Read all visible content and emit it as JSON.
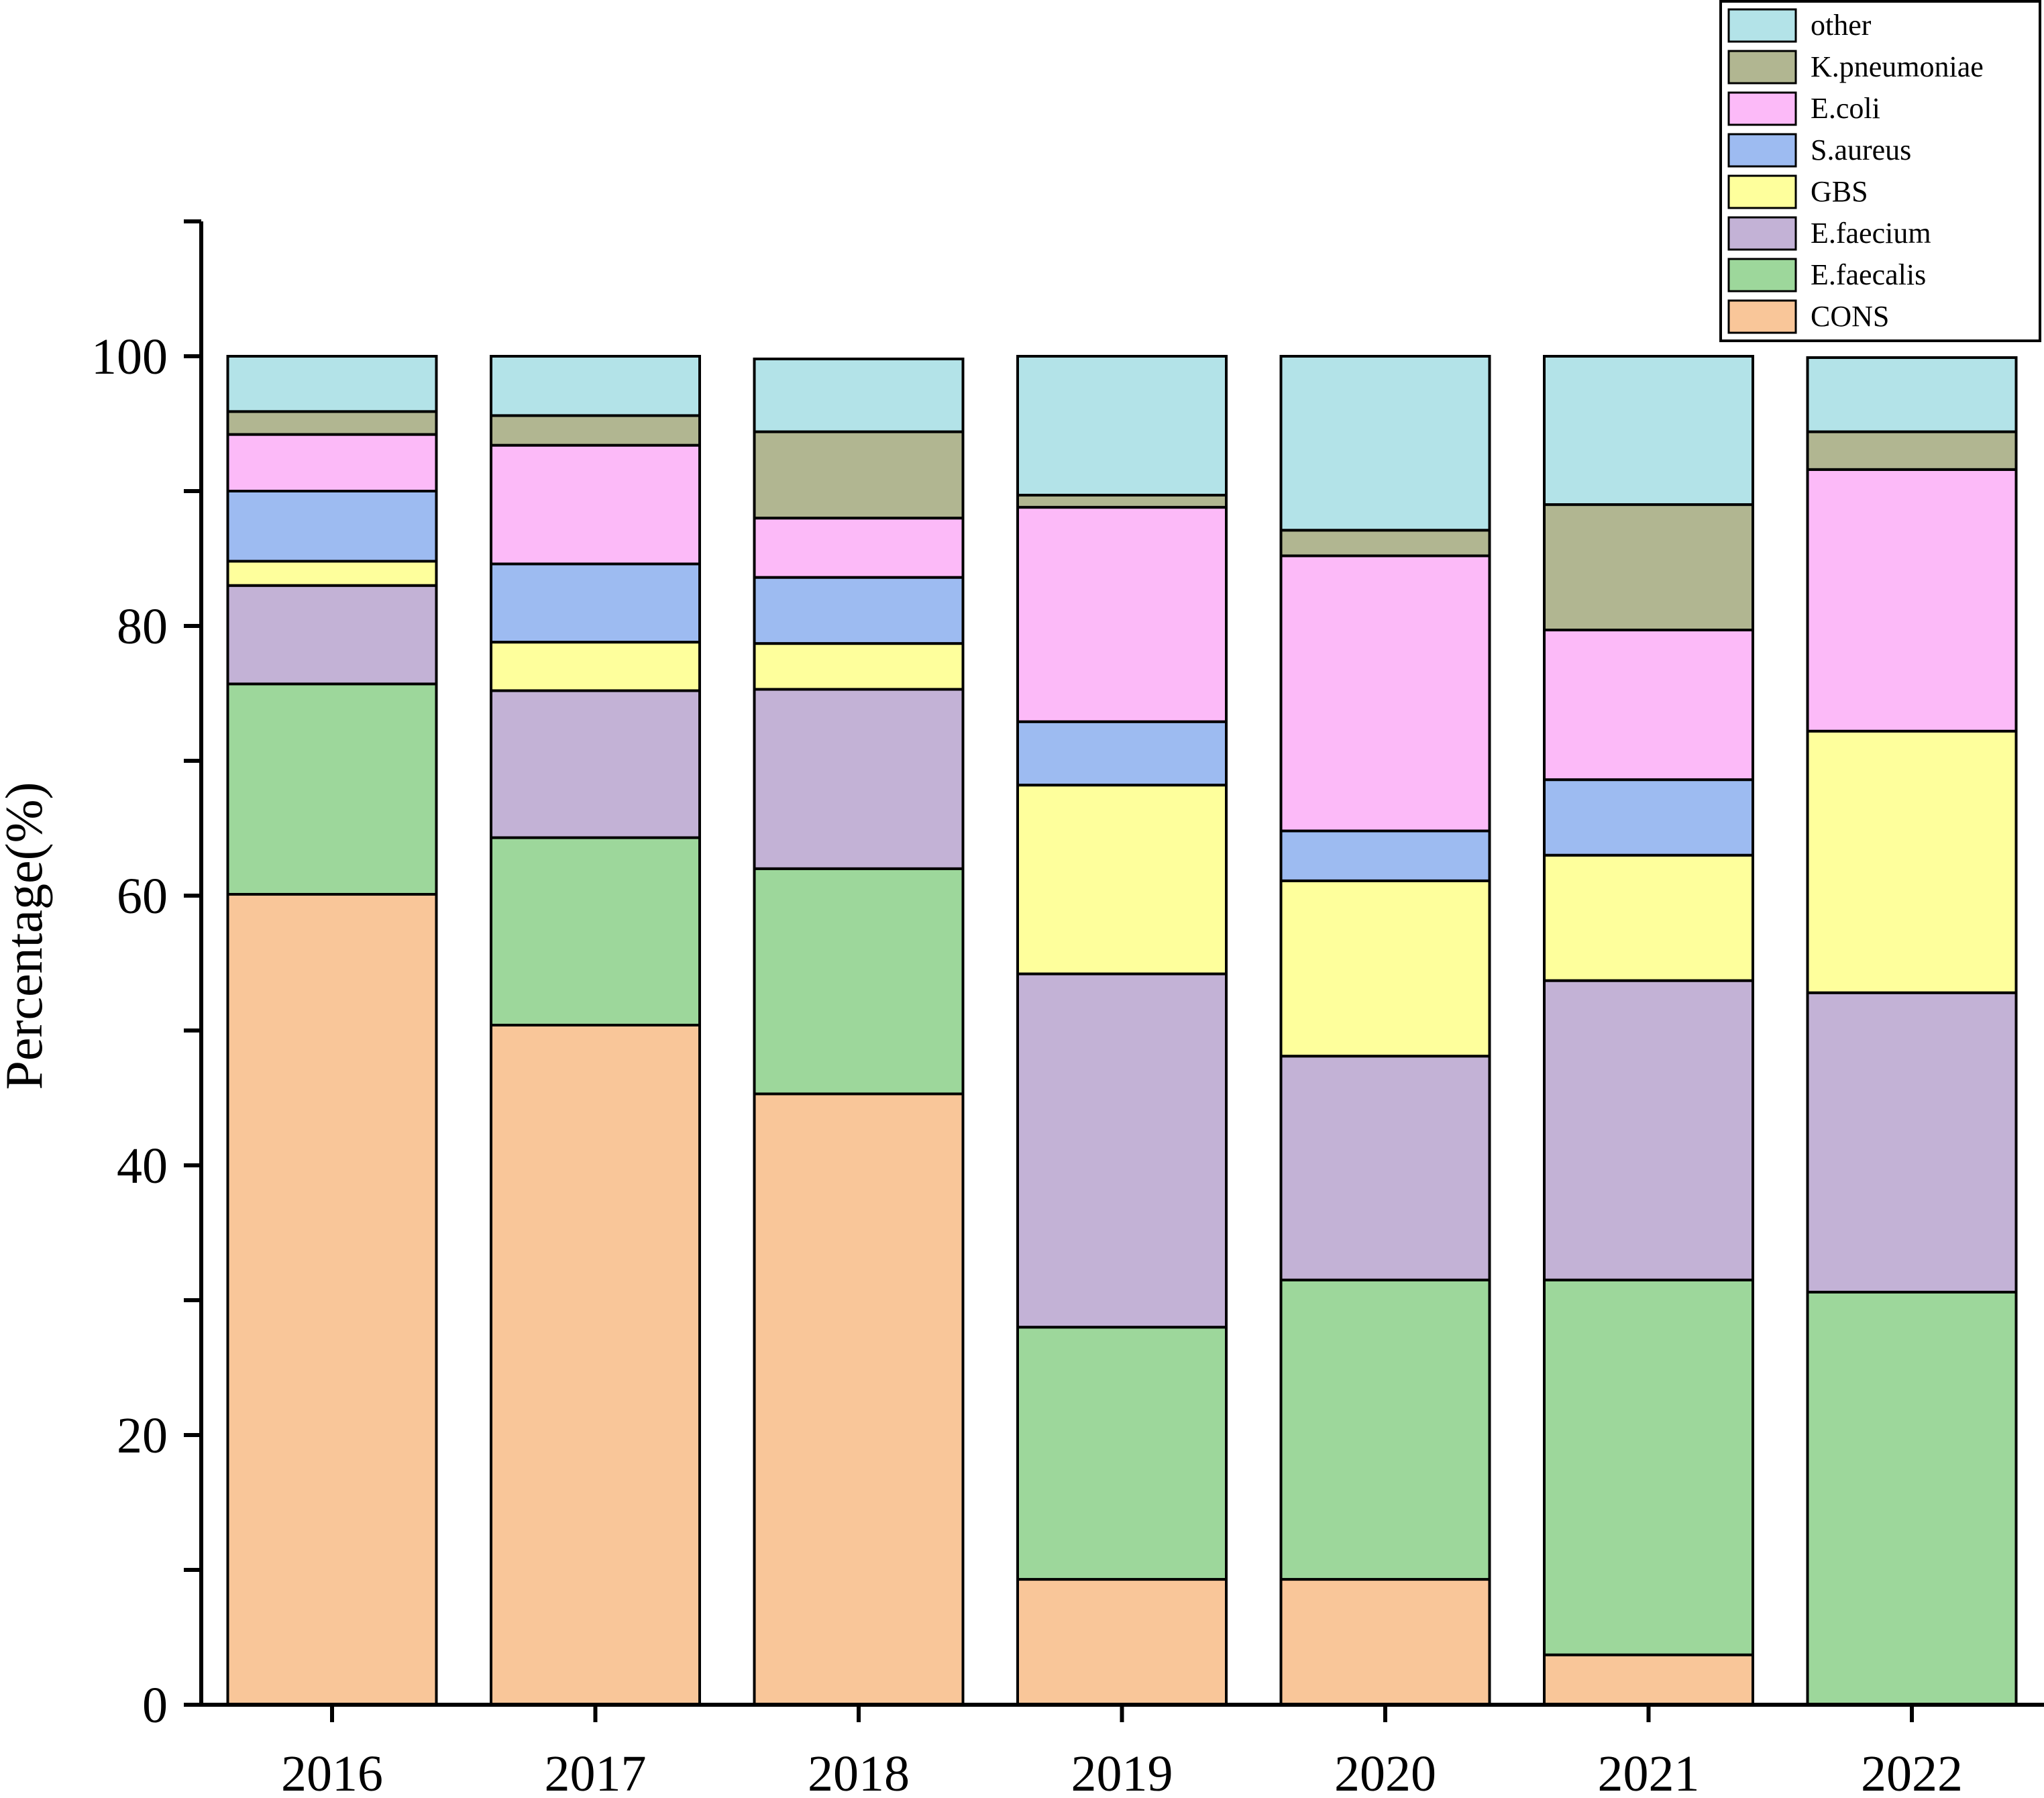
{
  "chart_data": {
    "type": "bar",
    "stacked": true,
    "categories": [
      "2016",
      "2017",
      "2018",
      "2019",
      "2020",
      "2021",
      "2022"
    ],
    "ylabel": "Percentage(%)",
    "xlabel": "",
    "ylim": [
      0,
      110
    ],
    "yticks": [
      0,
      20,
      40,
      60,
      80,
      100
    ],
    "legend_position": "top-right",
    "series": [
      {
        "name": "CONS",
        "color": "#F9C699",
        "values": [
          60.1,
          50.4,
          45.3,
          9.3,
          9.3,
          3.7,
          0.0
        ]
      },
      {
        "name": "E.faecalis",
        "color": "#9DD79B",
        "values": [
          15.6,
          13.9,
          16.7,
          18.7,
          22.2,
          27.8,
          30.6
        ]
      },
      {
        "name": "E.faecium",
        "color": "#C3B2D6",
        "values": [
          7.3,
          10.9,
          13.3,
          26.2,
          16.6,
          22.2,
          22.2
        ]
      },
      {
        "name": "GBS",
        "color": "#FEFF9C",
        "values": [
          1.8,
          3.6,
          3.4,
          14.0,
          13.0,
          9.3,
          19.4
        ]
      },
      {
        "name": "S.aureus",
        "color": "#9DBBF1",
        "values": [
          5.2,
          5.8,
          4.9,
          4.7,
          3.7,
          5.6,
          0.0
        ]
      },
      {
        "name": "E.coli",
        "color": "#FCBAF8",
        "values": [
          4.2,
          8.8,
          4.4,
          15.9,
          20.4,
          11.1,
          19.4
        ]
      },
      {
        "name": "K.pneumoniae",
        "color": "#B1B691",
        "values": [
          1.7,
          2.2,
          6.4,
          0.9,
          1.9,
          9.3,
          2.8
        ]
      },
      {
        "name": "other",
        "color": "#B3E3E8",
        "values": [
          4.1,
          4.4,
          5.4,
          10.3,
          12.9,
          11.0,
          5.5
        ]
      }
    ]
  }
}
